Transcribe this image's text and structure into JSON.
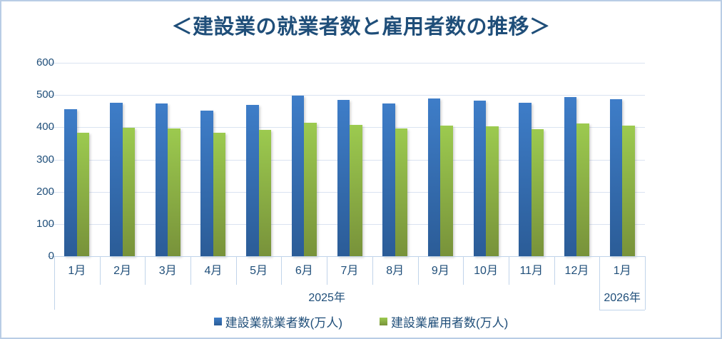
{
  "chart_data": {
    "type": "bar",
    "title": "＜建設業の就業者数と雇用者数の推移＞",
    "categories": [
      "1月",
      "2月",
      "3月",
      "4月",
      "5月",
      "6月",
      "7月",
      "8月",
      "9月",
      "10月",
      "11月",
      "12月",
      "1月"
    ],
    "year_groups": [
      {
        "label": "2025年",
        "span": 12
      },
      {
        "label": "2026年",
        "span": 1
      }
    ],
    "series": [
      {
        "name": "建設業就業者数(万人)",
        "values": [
          455,
          476,
          473,
          451,
          470,
          498,
          484,
          473,
          490,
          482,
          475,
          493,
          487
        ],
        "color_top": "#3E7DC8",
        "color_bottom": "#2B5C97"
      },
      {
        "name": "建設業雇用者数(万人)",
        "values": [
          382,
          399,
          396,
          382,
          391,
          414,
          407,
          396,
          406,
          404,
          393,
          411,
          406
        ],
        "color_top": "#9CCA4F",
        "color_bottom": "#78923A"
      }
    ],
    "ylim": [
      0,
      600
    ],
    "ytick_step": 100,
    "yticks": [
      "600",
      "500",
      "400",
      "300",
      "200",
      "100",
      "0"
    ],
    "grid": "horizontal",
    "legend_position": "bottom",
    "colors": {
      "text": "#1F4E79",
      "gridline": "#DAE3F1",
      "axis_line": "#BFD3EA",
      "frame_border": "#B9CDE5",
      "background": "#FFFFFF"
    }
  }
}
